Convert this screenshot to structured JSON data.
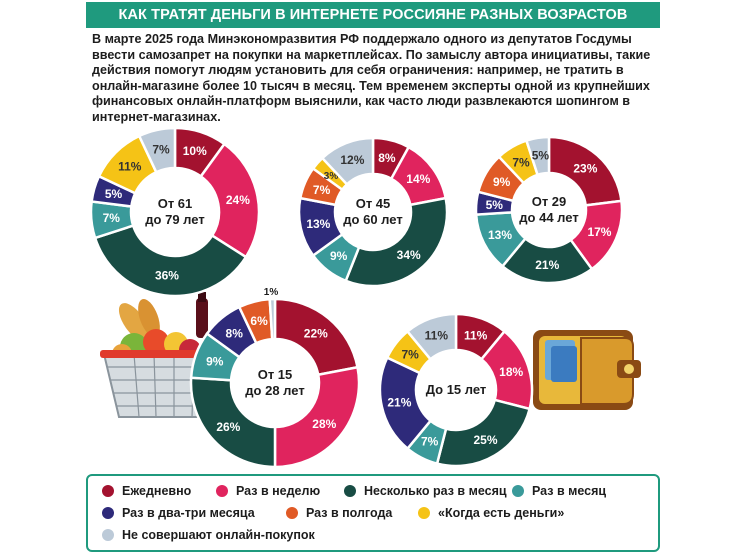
{
  "header": {
    "title": "КАК ТРАТЯТ ДЕНЬГИ В ИНТЕРНЕТЕ РОССИЯНЕ РАЗНЫХ ВОЗРАСТОВ"
  },
  "intro": {
    "text": "В марте 2025 года Минэкономразвития РФ поддержало одного из депутатов Госдумы ввести самозапрет на покупки на маркетплейсах. По замыслу автора инициативы, такие действия помогут людям установить для себя ограничения: например, не тратить в онлайн-магазине более 10 тысяч в месяц. Тем временем эксперты одной из крупнейших финансовых онлайн-платформ выяснили, как часто люди развлекаются шопингом в интернет-магазинах."
  },
  "colors": {
    "daily": "#a3122f",
    "weekly": "#e0245e",
    "several_month": "#184c44",
    "monthly": "#3a9a9a",
    "two_three_months": "#2e2a7a",
    "half_year": "#e05a26",
    "when_money": "#f5c316",
    "none": "#bccad8",
    "frame": "#1f9a7e"
  },
  "legend": {
    "items": [
      {
        "key": "daily",
        "label": "Ежедневно"
      },
      {
        "key": "weekly",
        "label": "Раз в неделю"
      },
      {
        "key": "several_month",
        "label": "Несколько раз в месяц"
      },
      {
        "key": "monthly",
        "label": "Раз в месяц"
      },
      {
        "key": "two_three_months",
        "label": "Раз в два-три месяца"
      },
      {
        "key": "half_year",
        "label": "Раз в полгода"
      },
      {
        "key": "when_money",
        "label": "«Когда есть деньги»"
      },
      {
        "key": "none",
        "label": "Не совершают онлайн-покупок"
      }
    ]
  },
  "chart_data": [
    {
      "type": "pie",
      "title": "От 61 до 79 лет",
      "center": [
        "От 61",
        "до 79 лет"
      ],
      "categories": [
        "Ежедневно",
        "Раз в неделю",
        "Несколько раз в месяц",
        "Раз в месяц",
        "Раз в два-три месяца",
        "Раз в полгода",
        "«Когда есть деньги»",
        "Не совершают онлайн-покупок"
      ],
      "keys": [
        "daily",
        "weekly",
        "several_month",
        "monthly",
        "two_three_months",
        "half_year",
        "when_money",
        "none"
      ],
      "values": [
        10,
        24,
        36,
        7,
        5,
        0,
        11,
        7
      ],
      "labels": [
        "10%",
        "24%",
        "36%",
        "7%",
        "5%",
        "",
        "11%",
        "7%"
      ]
    },
    {
      "type": "pie",
      "title": "От 45 до 60 лет",
      "center": [
        "От 45",
        "до 60 лет"
      ],
      "categories": [
        "Ежедневно",
        "Раз в неделю",
        "Несколько раз в месяц",
        "Раз в месяц",
        "Раз в два-три месяца",
        "Раз в полгода",
        "«Когда есть деньги»",
        "Не совершают онлайн-покупок"
      ],
      "keys": [
        "daily",
        "weekly",
        "several_month",
        "monthly",
        "two_three_months",
        "half_year",
        "when_money",
        "none"
      ],
      "values": [
        8,
        14,
        34,
        9,
        13,
        7,
        3,
        12
      ],
      "labels": [
        "8%",
        "14%",
        "34%",
        "9%",
        "13%",
        "7%",
        "3%",
        "12%"
      ]
    },
    {
      "type": "pie",
      "title": "От 29 до 44 лет",
      "center": [
        "От 29",
        "до 44 лет"
      ],
      "categories": [
        "Ежедневно",
        "Раз в неделю",
        "Несколько раз в месяц",
        "Раз в месяц",
        "Раз в два-три месяца",
        "Раз в полгода",
        "«Когда есть деньги»",
        "Не совершают онлайн-покупок"
      ],
      "keys": [
        "daily",
        "weekly",
        "several_month",
        "monthly",
        "two_three_months",
        "half_year",
        "when_money",
        "none"
      ],
      "values": [
        23,
        17,
        21,
        13,
        5,
        9,
        7,
        5
      ],
      "labels": [
        "23%",
        "17%",
        "21%",
        "13%",
        "5%",
        "9%",
        "7%",
        "5%"
      ]
    },
    {
      "type": "pie",
      "title": "От 15 до 28 лет",
      "center": [
        "От 15",
        "до 28 лет"
      ],
      "categories": [
        "Ежедневно",
        "Раз в неделю",
        "Несколько раз в месяц",
        "Раз в месяц",
        "Раз в два-три месяца",
        "Раз в полгода",
        "«Когда есть деньги»",
        "Не совершают онлайн-покупок"
      ],
      "keys": [
        "daily",
        "weekly",
        "several_month",
        "monthly",
        "two_three_months",
        "half_year",
        "when_money",
        "none"
      ],
      "values": [
        22,
        28,
        26,
        9,
        8,
        6,
        0,
        1
      ],
      "labels": [
        "22%",
        "28%",
        "26%",
        "9%",
        "8%",
        "6%",
        "",
        "1%"
      ]
    },
    {
      "type": "pie",
      "title": "До 15 лет",
      "center": [
        "До 15 лет"
      ],
      "categories": [
        "Ежедневно",
        "Раз в неделю",
        "Несколько раз в месяц",
        "Раз в месяц",
        "Раз в два-три месяца",
        "Раз в полгода",
        "«Когда есть деньги»",
        "Не совершают онлайн-покупок"
      ],
      "keys": [
        "daily",
        "weekly",
        "several_month",
        "monthly",
        "two_three_months",
        "half_year",
        "when_money",
        "none"
      ],
      "values": [
        11,
        18,
        25,
        7,
        21,
        0,
        7,
        11
      ],
      "labels": [
        "11%",
        "18%",
        "25%",
        "7%",
        "21%",
        "",
        "7%",
        "11%"
      ]
    }
  ]
}
